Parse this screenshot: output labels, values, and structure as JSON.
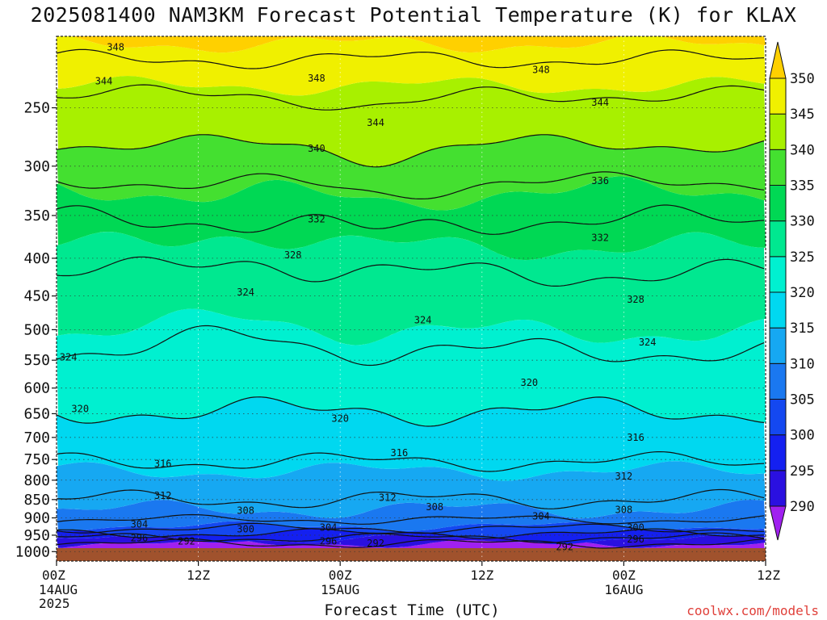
{
  "chart_data": {
    "type": "heatmap",
    "title": "2025081400 NAM3KM Forecast Potential Temperature (K) for KLAX",
    "xlabel": "Forecast Time (UTC)",
    "ylabel": "",
    "y_scale": "log-pressure",
    "ylim": [
      1030,
      200
    ],
    "xlim_hours": [
      0,
      60
    ],
    "pressure_ticks": [
      250,
      300,
      350,
      400,
      450,
      500,
      550,
      600,
      650,
      700,
      750,
      800,
      850,
      900,
      950,
      1000
    ],
    "time_ticks": [
      {
        "hour": 0,
        "label": "00Z",
        "date": "14AUG",
        "year": "2025"
      },
      {
        "hour": 12,
        "label": "12Z",
        "date": "",
        "year": ""
      },
      {
        "hour": 24,
        "label": "00Z",
        "date": "15AUG",
        "year": ""
      },
      {
        "hour": 36,
        "label": "12Z",
        "date": "",
        "year": ""
      },
      {
        "hour": 48,
        "label": "00Z",
        "date": "16AUG",
        "year": ""
      },
      {
        "hour": 60,
        "label": "12Z",
        "date": "",
        "year": ""
      }
    ],
    "colorbar": {
      "levels": [
        290,
        295,
        300,
        305,
        310,
        315,
        320,
        325,
        330,
        335,
        340,
        345,
        350
      ],
      "colors": [
        "#a020f0",
        "#2a10e0",
        "#1420f0",
        "#1448f0",
        "#1a78f0",
        "#16a8f2",
        "#00d8f0",
        "#00f0d0",
        "#00e890",
        "#00d854",
        "#44e030",
        "#a8f000",
        "#f0f000",
        "#ffd000"
      ]
    },
    "contour_levels": [
      292,
      296,
      300,
      304,
      308,
      312,
      316,
      320,
      324,
      328,
      332,
      336,
      340,
      344,
      348
    ],
    "profile": [
      {
        "theta": 292,
        "p": 975
      },
      {
        "theta": 296,
        "p": 958
      },
      {
        "theta": 300,
        "p": 945
      },
      {
        "theta": 304,
        "p": 930
      },
      {
        "theta": 308,
        "p": 905
      },
      {
        "theta": 312,
        "p": 850
      },
      {
        "theta": 316,
        "p": 755
      },
      {
        "theta": 320,
        "p": 645
      },
      {
        "theta": 324,
        "p": 535
      },
      {
        "theta": 328,
        "p": 420
      },
      {
        "theta": 332,
        "p": 355
      },
      {
        "theta": 336,
        "p": 315
      },
      {
        "theta": 340,
        "p": 280
      },
      {
        "theta": 344,
        "p": 240
      },
      {
        "theta": 348,
        "p": 215
      },
      {
        "theta": 352,
        "p": 195
      }
    ],
    "contour_labels": [
      {
        "theta": 348,
        "hour": 5.0,
        "p": 207
      },
      {
        "theta": 348,
        "hour": 22.0,
        "p": 228
      },
      {
        "theta": 348,
        "hour": 41.0,
        "p": 222
      },
      {
        "theta": 344,
        "hour": 4.0,
        "p": 230
      },
      {
        "theta": 344,
        "hour": 27.0,
        "p": 262
      },
      {
        "theta": 344,
        "hour": 46.0,
        "p": 246
      },
      {
        "theta": 340,
        "hour": 22.0,
        "p": 284
      },
      {
        "theta": 336,
        "hour": 46.0,
        "p": 314
      },
      {
        "theta": 332,
        "hour": 22.0,
        "p": 354
      },
      {
        "theta": 332,
        "hour": 46.0,
        "p": 375
      },
      {
        "theta": 328,
        "hour": 20.0,
        "p": 396
      },
      {
        "theta": 328,
        "hour": 49.0,
        "p": 455
      },
      {
        "theta": 324,
        "hour": 16.0,
        "p": 445
      },
      {
        "theta": 324,
        "hour": 31.0,
        "p": 485
      },
      {
        "theta": 324,
        "hour": 50.0,
        "p": 520
      },
      {
        "theta": 324,
        "hour": 1.0,
        "p": 545
      },
      {
        "theta": 320,
        "hour": 40.0,
        "p": 590
      },
      {
        "theta": 320,
        "hour": 2.0,
        "p": 640
      },
      {
        "theta": 320,
        "hour": 24.0,
        "p": 660
      },
      {
        "theta": 316,
        "hour": 29.0,
        "p": 735
      },
      {
        "theta": 316,
        "hour": 49.0,
        "p": 700
      },
      {
        "theta": 316,
        "hour": 9.0,
        "p": 760
      },
      {
        "theta": 312,
        "hour": 9.0,
        "p": 840
      },
      {
        "theta": 312,
        "hour": 28.0,
        "p": 845
      },
      {
        "theta": 312,
        "hour": 48.0,
        "p": 790
      },
      {
        "theta": 308,
        "hour": 16.0,
        "p": 880
      },
      {
        "theta": 308,
        "hour": 32.0,
        "p": 870
      },
      {
        "theta": 308,
        "hour": 48.0,
        "p": 878
      },
      {
        "theta": 304,
        "hour": 7.0,
        "p": 918
      },
      {
        "theta": 304,
        "hour": 23.0,
        "p": 928
      },
      {
        "theta": 304,
        "hour": 41.0,
        "p": 895
      },
      {
        "theta": 300,
        "hour": 16.0,
        "p": 932
      },
      {
        "theta": 300,
        "hour": 49.0,
        "p": 928
      },
      {
        "theta": 296,
        "hour": 7.0,
        "p": 958
      },
      {
        "theta": 296,
        "hour": 23.0,
        "p": 968
      },
      {
        "theta": 296,
        "hour": 49.0,
        "p": 962
      },
      {
        "theta": 292,
        "hour": 11.0,
        "p": 968
      },
      {
        "theta": 292,
        "hour": 27.0,
        "p": 975
      },
      {
        "theta": 292,
        "hour": 43.0,
        "p": 985
      }
    ],
    "ground_color": "#a0522d",
    "grid": true
  },
  "credit": "coolwx.com/models"
}
